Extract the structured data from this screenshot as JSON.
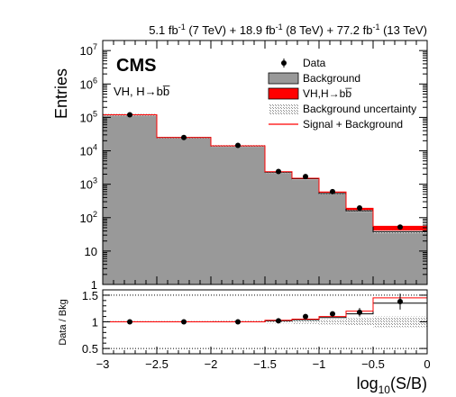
{
  "chart_data": [
    {
      "type": "area",
      "panel": "main",
      "ylabel": "Entries",
      "yscale": "log",
      "ylim": [
        1,
        20000000
      ],
      "xlim": [
        -3,
        0
      ],
      "grid": false,
      "experiment": "CMS",
      "process_label": "VH, H→bb̅",
      "lumi": {
        "segments": [
          {
            "val": "5.1 fb",
            "sup": "-1",
            "energy": " (7 TeV) + "
          },
          {
            "val": "18.9 fb",
            "sup": "-1",
            "energy": " (8 TeV) + "
          },
          {
            "val": "77.2 fb",
            "sup": "-1",
            "energy": " (13 TeV)"
          }
        ]
      },
      "y_ticks": [
        {
          "value": 10000000,
          "base": "10",
          "exp": "7"
        },
        {
          "value": 1000000,
          "base": "10",
          "exp": "6"
        },
        {
          "value": 100000,
          "base": "10",
          "exp": "5"
        },
        {
          "value": 10000,
          "base": "10",
          "exp": "4"
        },
        {
          "value": 1000,
          "base": "10",
          "exp": "3"
        },
        {
          "value": 100,
          "base": "10",
          "exp": "2"
        },
        {
          "value": 10,
          "base": "10",
          "exp": ""
        },
        {
          "value": 1,
          "base": "1",
          "exp": ""
        }
      ],
      "bin_edges": [
        -3,
        -2.5,
        -2,
        -1.5,
        -1.25,
        -1,
        -0.75,
        -0.5,
        0
      ],
      "background": [
        120000,
        25000,
        14000,
        2300,
        1450,
        530,
        160,
        38
      ],
      "signal": [
        30,
        45,
        60,
        60,
        65,
        55,
        30,
        17
      ],
      "data": {
        "x": [
          -2.75,
          -2.25,
          -1.75,
          -1.375,
          -1.125,
          -0.875,
          -0.625,
          -0.25
        ],
        "y": [
          120000,
          25000,
          14500,
          2400,
          1700,
          600,
          195,
          52
        ]
      },
      "legend": {
        "placement": "top-right",
        "entries": [
          {
            "label": "Data",
            "style": "marker",
            "color": "#000000"
          },
          {
            "label": "Background",
            "style": "fill",
            "color": "#999999"
          },
          {
            "label": "VH,H→bb̅",
            "style": "fill",
            "color": "#ff0000"
          },
          {
            "label": "Background uncertainty",
            "style": "hatch",
            "color": "#bbbbbb"
          },
          {
            "label": "Signal + Background",
            "style": "line",
            "color": "#ff0000"
          }
        ]
      }
    },
    {
      "type": "line",
      "panel": "ratio",
      "ylabel": "Data / Bkg",
      "xlabel_main": "log",
      "xlabel_sub": "10",
      "xlabel_tail": "(S/B)",
      "ylim": [
        0.4,
        1.6
      ],
      "xlim": [
        -3,
        0
      ],
      "y_ticks": [
        "1.5",
        "1",
        "0.5"
      ],
      "y_tick_values": [
        1.5,
        1,
        0.5
      ],
      "x_ticks": [
        "−3",
        "−2.5",
        "−2",
        "−1.5",
        "−1",
        "−0.5",
        "0"
      ],
      "x_tick_values": [
        -3,
        -2.5,
        -2,
        -1.5,
        -1,
        -0.5,
        0
      ],
      "bin_edges": [
        -3,
        -2.5,
        -2,
        -1.5,
        -1.25,
        -1,
        -0.75,
        -0.5,
        0
      ],
      "signal_plus_background_ratio": [
        1.0,
        1.0,
        1.0,
        1.03,
        1.05,
        1.1,
        1.2,
        1.45
      ],
      "black_ratio": [
        1.0,
        1.0,
        1.0,
        1.02,
        1.04,
        1.08,
        1.15,
        1.35
      ],
      "data": {
        "x": [
          -2.75,
          -2.25,
          -1.75,
          -1.375,
          -1.125,
          -0.875,
          -0.625,
          -0.25
        ],
        "y": [
          1.0,
          1.0,
          1.0,
          1.02,
          1.1,
          1.15,
          1.18,
          1.38
        ],
        "err": [
          0.005,
          0.008,
          0.01,
          0.025,
          0.03,
          0.045,
          0.08,
          0.15
        ]
      },
      "uncertainty_band": [
        0.015,
        0.015,
        0.02,
        0.03,
        0.04,
        0.05,
        0.07,
        0.1
      ],
      "dotted_reference_lines": [
        1.5,
        0.5
      ]
    }
  ]
}
